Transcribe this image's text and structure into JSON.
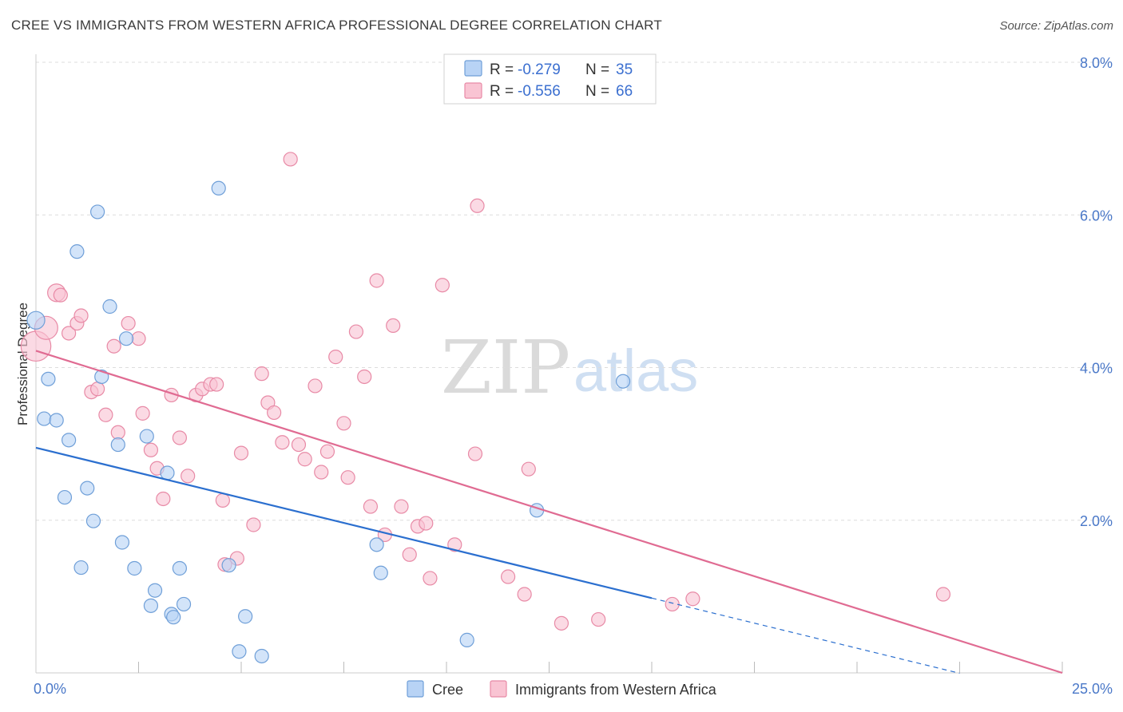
{
  "header": {
    "title": "CREE VS IMMIGRANTS FROM WESTERN AFRICA PROFESSIONAL DEGREE CORRELATION CHART",
    "source": "Source: ZipAtlas.com"
  },
  "watermark": {
    "zip": "ZIP",
    "atlas": "atlas"
  },
  "colors": {
    "cree_fill": "#b8d3f5",
    "cree_stroke": "#6f9fd8",
    "cree_line": "#2b6fcf",
    "waf_fill": "#f9c4d3",
    "waf_stroke": "#e88aa6",
    "waf_line": "#e06b92",
    "grid": "#dddddd",
    "tick_label": "#4a78c8"
  },
  "legend": {
    "rows": [
      {
        "r_label": "R =",
        "r_value": "-0.279",
        "n_label": "N =",
        "n_value": "35"
      },
      {
        "r_label": "R =",
        "r_value": "-0.556",
        "n_label": "N =",
        "n_value": "66"
      }
    ]
  },
  "chart_data": {
    "type": "scatter",
    "title": "CREE VS IMMIGRANTS FROM WESTERN AFRICA PROFESSIONAL DEGREE CORRELATION CHART",
    "xlabel": "",
    "ylabel": "Professional Degree",
    "xlim": [
      0,
      25
    ],
    "ylim": [
      0,
      8.0
    ],
    "x_tick_labels": [
      "0.0%",
      "25.0%"
    ],
    "y_ticks": [
      2.0,
      4.0,
      6.0,
      8.0
    ],
    "y_tick_labels": [
      "2.0%",
      "4.0%",
      "6.0%",
      "8.0%"
    ],
    "grid": true,
    "legend_position": "top-center",
    "series": [
      {
        "name": "Cree",
        "r": -0.279,
        "n": 35,
        "trend": {
          "x0": 0,
          "y0": 2.95,
          "x1": 15,
          "y1": 0.98,
          "dash_to_x": 22.5
        },
        "points": [
          [
            0.0,
            4.62,
            1.3
          ],
          [
            0.3,
            3.85,
            1
          ],
          [
            0.2,
            3.33,
            1
          ],
          [
            0.5,
            3.31,
            1
          ],
          [
            0.8,
            3.05,
            1
          ],
          [
            0.7,
            2.3,
            1
          ],
          [
            1.0,
            5.52,
            1
          ],
          [
            1.5,
            6.04,
            1
          ],
          [
            1.8,
            4.8,
            1
          ],
          [
            1.6,
            3.88,
            1
          ],
          [
            1.25,
            2.42,
            1
          ],
          [
            1.4,
            1.99,
            1
          ],
          [
            2.0,
            2.99,
            1
          ],
          [
            2.1,
            1.71,
            1
          ],
          [
            2.2,
            4.38,
            1
          ],
          [
            2.7,
            3.1,
            1
          ],
          [
            3.2,
            2.62,
            1
          ],
          [
            1.1,
            1.38,
            1
          ],
          [
            2.4,
            1.37,
            1
          ],
          [
            3.5,
            1.37,
            1
          ],
          [
            2.9,
            1.08,
            1
          ],
          [
            2.8,
            0.88,
            1
          ],
          [
            3.3,
            0.77,
            1
          ],
          [
            3.35,
            0.73,
            1
          ],
          [
            3.6,
            0.9,
            1
          ],
          [
            4.45,
            6.35,
            1
          ],
          [
            4.7,
            1.41,
            1
          ],
          [
            4.95,
            0.28,
            1
          ],
          [
            5.1,
            0.74,
            1
          ],
          [
            5.5,
            0.22,
            1
          ],
          [
            8.3,
            1.68,
            1
          ],
          [
            8.4,
            1.31,
            1
          ],
          [
            10.5,
            0.43,
            1
          ],
          [
            12.2,
            2.13,
            1
          ],
          [
            14.3,
            3.82,
            1
          ]
        ]
      },
      {
        "name": "Immigrants from Western Africa",
        "r": -0.556,
        "n": 66,
        "trend": {
          "x0": 0,
          "y0": 4.22,
          "x1": 25,
          "y1": 0.0
        },
        "points": [
          [
            0.0,
            4.28,
            2.2
          ],
          [
            0.25,
            4.52,
            1.7
          ],
          [
            0.5,
            4.98,
            1.3
          ],
          [
            0.6,
            4.95,
            1
          ],
          [
            0.8,
            4.45,
            1
          ],
          [
            1.0,
            4.58,
            1
          ],
          [
            1.1,
            4.68,
            1
          ],
          [
            1.35,
            3.68,
            1
          ],
          [
            1.5,
            3.72,
            1
          ],
          [
            1.7,
            3.38,
            1
          ],
          [
            1.9,
            4.28,
            1
          ],
          [
            2.0,
            3.15,
            1
          ],
          [
            2.25,
            4.58,
            1
          ],
          [
            2.5,
            4.38,
            1
          ],
          [
            2.6,
            3.4,
            1
          ],
          [
            2.8,
            2.92,
            1
          ],
          [
            2.95,
            2.68,
            1
          ],
          [
            3.1,
            2.28,
            1
          ],
          [
            3.3,
            3.64,
            1
          ],
          [
            3.5,
            3.08,
            1
          ],
          [
            3.7,
            2.58,
            1
          ],
          [
            3.9,
            3.64,
            1
          ],
          [
            4.05,
            3.72,
            1
          ],
          [
            4.25,
            3.78,
            1
          ],
          [
            4.4,
            3.78,
            1
          ],
          [
            4.55,
            2.26,
            1
          ],
          [
            4.6,
            1.42,
            1
          ],
          [
            4.9,
            1.5,
            1
          ],
          [
            5.0,
            2.88,
            1
          ],
          [
            5.3,
            1.94,
            1
          ],
          [
            5.5,
            3.92,
            1
          ],
          [
            5.65,
            3.54,
            1
          ],
          [
            5.8,
            3.41,
            1
          ],
          [
            6.0,
            3.02,
            1
          ],
          [
            6.2,
            6.73,
            1
          ],
          [
            6.4,
            2.99,
            1
          ],
          [
            6.55,
            2.8,
            1
          ],
          [
            6.8,
            3.76,
            1
          ],
          [
            6.95,
            2.63,
            1
          ],
          [
            7.1,
            2.9,
            1
          ],
          [
            7.3,
            4.14,
            1
          ],
          [
            7.5,
            3.27,
            1
          ],
          [
            7.6,
            2.56,
            1
          ],
          [
            7.8,
            4.47,
            1
          ],
          [
            8.0,
            3.88,
            1
          ],
          [
            8.15,
            2.18,
            1
          ],
          [
            8.3,
            5.14,
            1
          ],
          [
            8.5,
            1.81,
            1
          ],
          [
            8.7,
            4.55,
            1
          ],
          [
            8.9,
            2.18,
            1
          ],
          [
            9.1,
            1.55,
            1
          ],
          [
            9.3,
            1.92,
            1
          ],
          [
            9.5,
            1.96,
            1
          ],
          [
            9.6,
            1.24,
            1
          ],
          [
            9.9,
            5.08,
            1
          ],
          [
            10.2,
            1.68,
            1
          ],
          [
            10.7,
            2.87,
            1
          ],
          [
            10.75,
            6.12,
            1
          ],
          [
            11.5,
            1.26,
            1
          ],
          [
            12.0,
            2.67,
            1
          ],
          [
            11.9,
            1.03,
            1
          ],
          [
            12.8,
            0.65,
            1
          ],
          [
            13.7,
            0.7,
            1
          ],
          [
            15.5,
            0.9,
            1
          ],
          [
            16.0,
            0.97,
            1
          ],
          [
            22.1,
            1.03,
            1
          ]
        ]
      }
    ]
  }
}
